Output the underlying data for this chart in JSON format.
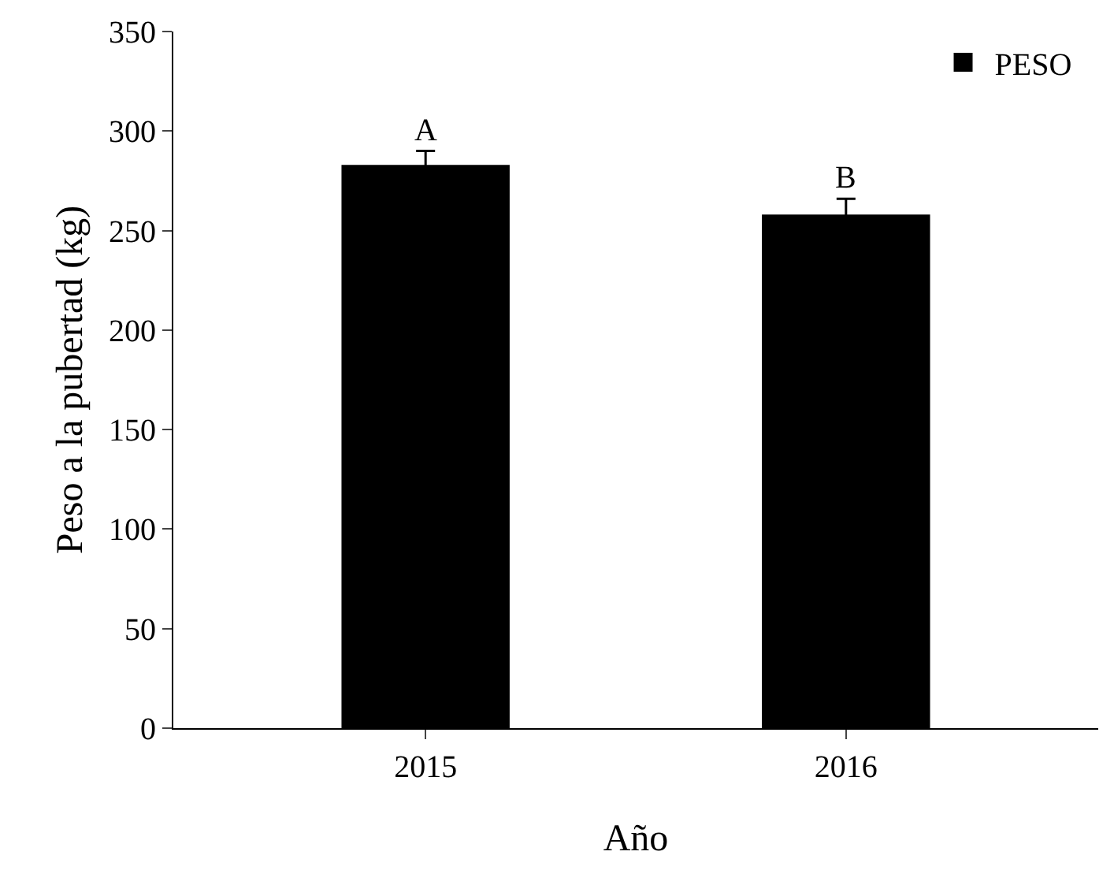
{
  "chart_data": {
    "type": "bar",
    "xlabel": "Año",
    "ylabel": "Peso a la pubertad (kg)",
    "categories": [
      "2015",
      "2016"
    ],
    "series": [
      {
        "name": "PESO",
        "color": "#000000",
        "values": [
          283,
          258
        ],
        "errors": [
          7,
          8
        ]
      }
    ],
    "ylim": [
      0,
      350
    ],
    "yticks": [
      0,
      50,
      100,
      150,
      200,
      250,
      300,
      350
    ],
    "grid": false,
    "legend": "top right",
    "annotations": [
      {
        "text": "A",
        "x": "2015",
        "y": 290
      },
      {
        "text": "B",
        "x": "2016",
        "y": 266
      }
    ]
  }
}
